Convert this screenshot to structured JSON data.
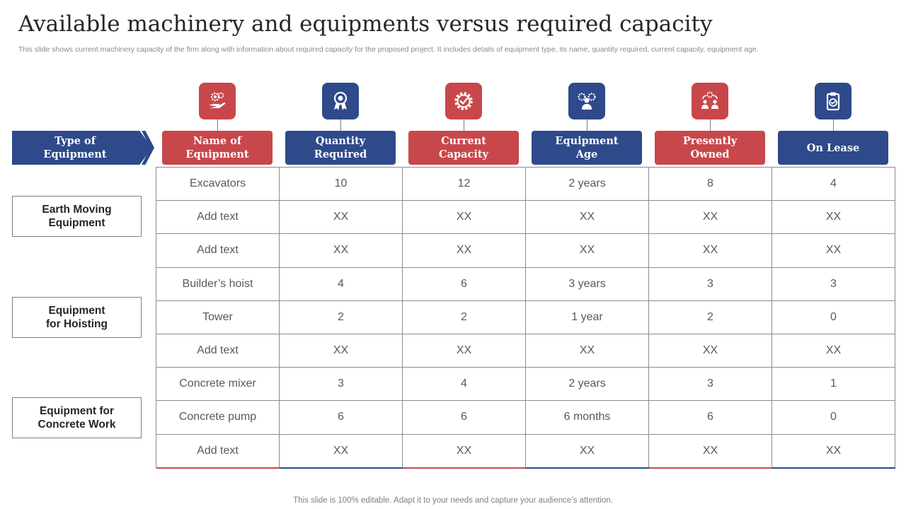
{
  "page": {
    "title": "Available machinery and equipments versus required capacity",
    "subtitle": "This slide shows current machinery capacity of the firm along with information about required capacity for the proposed project. It includes details of equipment type, its name, quantity required, current capacity,  equipment age.",
    "footer": "This slide is 100% editable. Adapt it to your needs and capture your audience’s attention."
  },
  "type_header": "Type of\nEquipment",
  "columns": [
    {
      "label": "Name of\nEquipment",
      "icon": "hand-gears-icon",
      "color": "#c8474b"
    },
    {
      "label": "Quantity\nRequired",
      "icon": "award-ribbon-icon",
      "color": "#2e4a8b"
    },
    {
      "label": "Current\nCapacity",
      "icon": "gear-check-icon",
      "color": "#c8474b"
    },
    {
      "label": "Equipment\nAge",
      "icon": "team-gears-icon",
      "color": "#2e4a8b"
    },
    {
      "label": "Presently\nOwned",
      "icon": "people-process-icon",
      "color": "#c8474b"
    },
    {
      "label": "On Lease",
      "icon": "clipboard-check-icon",
      "color": "#2e4a8b"
    }
  ],
  "categories": [
    "Earth Moving\nEquipment",
    "Equipment\nfor Hoisting",
    "Equipment for\nConcrete Work"
  ],
  "rows": [
    [
      "Excavators",
      "10",
      "12",
      "2 years",
      "8",
      "4"
    ],
    [
      "Add text",
      "XX",
      "XX",
      "XX",
      "XX",
      "XX"
    ],
    [
      "Add text",
      "XX",
      "XX",
      "XX",
      "XX",
      "XX"
    ],
    [
      "Builder’s hoist",
      "4",
      "6",
      "3 years",
      "3",
      "3"
    ],
    [
      "Tower",
      "2",
      "2",
      "1 year",
      "2",
      "0"
    ],
    [
      "Add text",
      "XX",
      "XX",
      "XX",
      "XX",
      "XX"
    ],
    [
      "Concrete mixer",
      "3",
      "4",
      "2 years",
      "3",
      "1"
    ],
    [
      "Concrete pump",
      "6",
      "6",
      "6 months",
      "6",
      "0"
    ],
    [
      "Add text",
      "XX",
      "XX",
      "XX",
      "XX",
      "XX"
    ]
  ]
}
